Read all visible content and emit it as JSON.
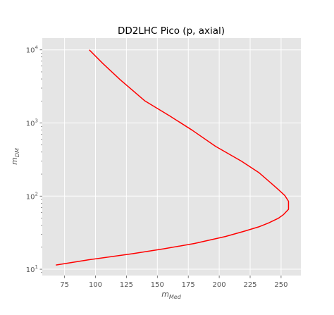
{
  "chart_data": {
    "type": "line",
    "title": "DD2LHC Pico (p, axial)",
    "xlabel": {
      "base": "m",
      "sub": "Med"
    },
    "ylabel": {
      "base": "m",
      "sub": "DM"
    },
    "xlim": [
      57,
      266
    ],
    "ylim": [
      8.2,
      14500
    ],
    "yscale": "log",
    "grid": true,
    "x_ticks": [
      75,
      100,
      125,
      150,
      175,
      200,
      225,
      250
    ],
    "y_ticks": [
      {
        "value": 10,
        "base": "10",
        "exp": "1"
      },
      {
        "value": 100,
        "base": "10",
        "exp": "2"
      },
      {
        "value": 1000,
        "base": "10",
        "exp": "3"
      },
      {
        "value": 10000,
        "base": "10",
        "exp": "4"
      }
    ],
    "series": [
      {
        "color": "#ff0000",
        "points": [
          {
            "x": 68,
            "y": 11.4
          },
          {
            "x": 95,
            "y": 13.5
          },
          {
            "x": 130,
            "y": 16.3
          },
          {
            "x": 155,
            "y": 19.0
          },
          {
            "x": 180,
            "y": 22.5
          },
          {
            "x": 205,
            "y": 28
          },
          {
            "x": 220,
            "y": 33
          },
          {
            "x": 232,
            "y": 38
          },
          {
            "x": 240,
            "y": 43
          },
          {
            "x": 248,
            "y": 50
          },
          {
            "x": 252,
            "y": 56
          },
          {
            "x": 256,
            "y": 66
          },
          {
            "x": 256,
            "y": 85
          },
          {
            "x": 253,
            "y": 102
          },
          {
            "x": 248,
            "y": 122
          },
          {
            "x": 243,
            "y": 145
          },
          {
            "x": 232,
            "y": 210
          },
          {
            "x": 218,
            "y": 300
          },
          {
            "x": 197,
            "y": 480
          },
          {
            "x": 178,
            "y": 800
          },
          {
            "x": 160,
            "y": 1250
          },
          {
            "x": 140,
            "y": 2000
          },
          {
            "x": 120,
            "y": 3900
          },
          {
            "x": 106,
            "y": 6500
          },
          {
            "x": 95,
            "y": 10000
          }
        ]
      }
    ],
    "colors": {
      "background": "#e5e5e5",
      "grid": "#ffffff",
      "text": "#555555"
    }
  }
}
